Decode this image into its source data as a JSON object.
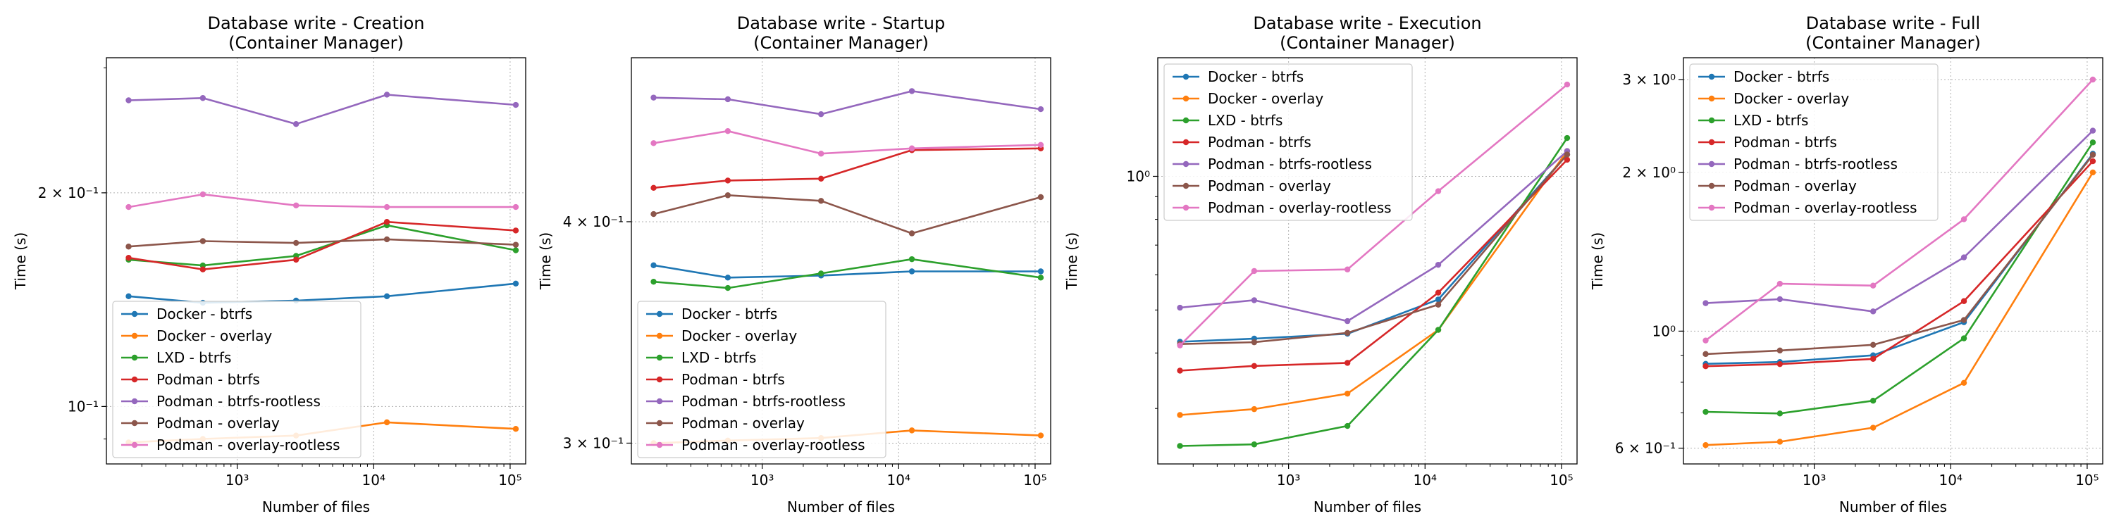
{
  "figure": {
    "series_names": [
      "Docker - btrfs",
      "Docker - overlay",
      "LXD - btrfs",
      "Podman - btrfs",
      "Podman - btrfs-rootless",
      "Podman - overlay",
      "Podman - overlay-rootless"
    ],
    "colors": [
      "#1f77b4",
      "#ff7f0e",
      "#2ca02c",
      "#d62728",
      "#9467bd",
      "#8c564b",
      "#e377c2"
    ]
  },
  "chart_data": [
    {
      "type": "line",
      "title": "Database write - Creation",
      "subtitle": "(Container Manager)",
      "xlabel": "Number of files",
      "ylabel": "Time (s)",
      "xscale": "log",
      "yscale": "log",
      "xlim": [
        110,
        130000
      ],
      "ylim": [
        0.083,
        0.31
      ],
      "x": [
        160,
        560,
        2700,
        12500,
        110000
      ],
      "x_ticks": [
        {
          "v": 1000,
          "l": "10³"
        },
        {
          "v": 10000,
          "l": "10⁴"
        },
        {
          "v": 100000,
          "l": "10⁵"
        }
      ],
      "y_ticks": [
        {
          "v": 0.2,
          "l": "2 × 10⁻¹"
        },
        {
          "v": 0.1,
          "l": "10⁻¹"
        }
      ],
      "legend": "lower-left",
      "grid": true,
      "series": [
        {
          "name": "Docker - btrfs",
          "values": [
            0.143,
            0.14,
            0.141,
            0.143,
            0.149
          ]
        },
        {
          "name": "Docker - overlay",
          "values": [
            0.089,
            0.09,
            0.091,
            0.095,
            0.093
          ]
        },
        {
          "name": "LXD - btrfs",
          "values": [
            0.161,
            0.158,
            0.163,
            0.18,
            0.166
          ]
        },
        {
          "name": "Podman - btrfs",
          "values": [
            0.162,
            0.156,
            0.161,
            0.182,
            0.177
          ]
        },
        {
          "name": "Podman - btrfs-rootless",
          "values": [
            0.27,
            0.272,
            0.25,
            0.275,
            0.266
          ]
        },
        {
          "name": "Podman - overlay",
          "values": [
            0.168,
            0.171,
            0.17,
            0.172,
            0.169
          ]
        },
        {
          "name": "Podman - overlay-rootless",
          "values": [
            0.191,
            0.199,
            0.192,
            0.191,
            0.191
          ]
        }
      ]
    },
    {
      "type": "line",
      "title": "Database write - Startup",
      "subtitle": "(Container Manager)",
      "xlabel": "Number of files",
      "ylabel": "Time (s)",
      "xscale": "log",
      "yscale": "log",
      "xlim": [
        110,
        130000
      ],
      "ylim": [
        0.292,
        0.495
      ],
      "x": [
        160,
        560,
        2700,
        12500,
        110000
      ],
      "x_ticks": [
        {
          "v": 1000,
          "l": "10³"
        },
        {
          "v": 10000,
          "l": "10⁴"
        },
        {
          "v": 100000,
          "l": "10⁵"
        }
      ],
      "y_ticks": [
        {
          "v": 0.4,
          "l": "4 × 10⁻¹"
        },
        {
          "v": 0.3,
          "l": "3 × 10⁻¹"
        }
      ],
      "legend": "lower-left",
      "grid": true,
      "series": [
        {
          "name": "Docker - btrfs",
          "values": [
            0.378,
            0.372,
            0.373,
            0.375,
            0.375
          ]
        },
        {
          "name": "Docker - overlay",
          "values": [
            0.3,
            0.301,
            0.302,
            0.305,
            0.303
          ]
        },
        {
          "name": "LXD - btrfs",
          "values": [
            0.37,
            0.367,
            0.374,
            0.381,
            0.372
          ]
        },
        {
          "name": "Podman - btrfs",
          "values": [
            0.418,
            0.422,
            0.423,
            0.439,
            0.44
          ]
        },
        {
          "name": "Podman - btrfs-rootless",
          "values": [
            0.47,
            0.469,
            0.46,
            0.474,
            0.463
          ]
        },
        {
          "name": "Podman - overlay",
          "values": [
            0.404,
            0.414,
            0.411,
            0.394,
            0.413
          ]
        },
        {
          "name": "Podman - overlay-rootless",
          "values": [
            0.443,
            0.45,
            0.437,
            0.44,
            0.442
          ]
        }
      ]
    },
    {
      "type": "line",
      "title": "Database write - Execution",
      "subtitle": "(Container Manager)",
      "xlabel": "Number of files",
      "ylabel": "Time (s)",
      "xscale": "log",
      "yscale": "log",
      "xlim": [
        110,
        130000
      ],
      "ylim": [
        0.225,
        1.85
      ],
      "x": [
        160,
        560,
        2700,
        12500,
        110000
      ],
      "x_ticks": [
        {
          "v": 1000,
          "l": "10³"
        },
        {
          "v": 10000,
          "l": "10⁴"
        },
        {
          "v": 100000,
          "l": "10⁵"
        }
      ],
      "y_ticks": [
        {
          "v": 1.0,
          "l": "10⁰"
        }
      ],
      "legend": "upper-left",
      "grid": true,
      "series": [
        {
          "name": "Docker - btrfs",
          "values": [
            0.424,
            0.431,
            0.442,
            0.528,
            1.12
          ]
        },
        {
          "name": "Docker - overlay",
          "values": [
            0.29,
            0.299,
            0.324,
            0.451,
            1.14
          ]
        },
        {
          "name": "LXD - btrfs",
          "values": [
            0.247,
            0.249,
            0.274,
            0.451,
            1.22
          ]
        },
        {
          "name": "Podman - btrfs",
          "values": [
            0.365,
            0.374,
            0.38,
            0.547,
            1.09
          ]
        },
        {
          "name": "Podman - btrfs-rootless",
          "values": [
            0.506,
            0.526,
            0.472,
            0.632,
            1.14
          ]
        },
        {
          "name": "Podman - overlay",
          "values": [
            0.419,
            0.423,
            0.444,
            0.514,
            1.12
          ]
        },
        {
          "name": "Podman - overlay-rootless",
          "values": [
            0.416,
            0.612,
            0.617,
            0.926,
            1.61
          ]
        }
      ]
    },
    {
      "type": "line",
      "title": "Database write - Full",
      "subtitle": "(Container Manager)",
      "xlabel": "Number of files",
      "ylabel": "Time (s)",
      "xscale": "log",
      "yscale": "log",
      "xlim": [
        110,
        130000
      ],
      "ylim": [
        0.56,
        3.3
      ],
      "x": [
        160,
        560,
        2700,
        12500,
        110000
      ],
      "x_ticks": [
        {
          "v": 1000,
          "l": "10³"
        },
        {
          "v": 10000,
          "l": "10⁴"
        },
        {
          "v": 100000,
          "l": "10⁵"
        }
      ],
      "y_ticks": [
        {
          "v": 3.0,
          "l": "3 × 10⁰"
        },
        {
          "v": 2.0,
          "l": "2 × 10⁰"
        },
        {
          "v": 1.0,
          "l": "10⁰"
        },
        {
          "v": 0.6,
          "l": "6 × 10⁻¹"
        }
      ],
      "legend": "upper-left",
      "grid": true,
      "series": [
        {
          "name": "Docker - btrfs",
          "values": [
            0.867,
            0.874,
            0.9,
            1.04,
            2.17
          ]
        },
        {
          "name": "Docker - overlay",
          "values": [
            0.608,
            0.617,
            0.656,
            0.798,
            2.0
          ]
        },
        {
          "name": "LXD - btrfs",
          "values": [
            0.703,
            0.698,
            0.738,
            0.969,
            2.28
          ]
        },
        {
          "name": "Podman - btrfs",
          "values": [
            0.858,
            0.866,
            0.886,
            1.14,
            2.1
          ]
        },
        {
          "name": "Podman - btrfs-rootless",
          "values": [
            1.13,
            1.15,
            1.09,
            1.38,
            2.4
          ]
        },
        {
          "name": "Podman - overlay",
          "values": [
            0.905,
            0.919,
            0.942,
            1.05,
            2.16
          ]
        },
        {
          "name": "Podman - overlay-rootless",
          "values": [
            0.96,
            1.23,
            1.22,
            1.63,
            3.0
          ]
        }
      ]
    }
  ]
}
